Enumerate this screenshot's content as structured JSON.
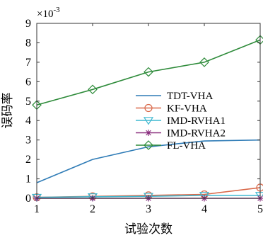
{
  "chart_data": {
    "type": "line",
    "xlabel": "试验次数",
    "ylabel": "误码率",
    "y_exponent": {
      "base": "×10",
      "power": "-3"
    },
    "x": [
      1,
      2,
      3,
      4,
      5
    ],
    "xlim": [
      1,
      5
    ],
    "ylim": [
      0,
      9
    ],
    "xticks": [
      "1",
      "2",
      "3",
      "4",
      "5"
    ],
    "yticks": [
      "0",
      "1",
      "2",
      "3",
      "4",
      "5",
      "6",
      "7",
      "8",
      "9"
    ],
    "grid": false,
    "legend_position": "center-right",
    "series": [
      {
        "name": "TDT-VHA",
        "color": "#2e7bb6",
        "marker": "none",
        "values": [
          0.8,
          2.0,
          2.65,
          2.95,
          3.0
        ]
      },
      {
        "name": "KF-VHA",
        "color": "#d9694a",
        "marker": "circle",
        "values": [
          0.05,
          0.1,
          0.15,
          0.2,
          0.55
        ]
      },
      {
        "name": "IMD-RVHA1",
        "color": "#3fb8d0",
        "marker": "triangle-down",
        "values": [
          0.05,
          0.08,
          0.1,
          0.15,
          0.15
        ]
      },
      {
        "name": "IMD-RVHA2",
        "color": "#8a2e7e",
        "marker": "star",
        "values": [
          0.0,
          0.0,
          0.0,
          0.0,
          0.0
        ]
      },
      {
        "name": "FL-VHA",
        "color": "#2e8b3a",
        "marker": "diamond",
        "values": [
          4.8,
          5.6,
          6.5,
          7.0,
          8.15
        ]
      }
    ]
  }
}
